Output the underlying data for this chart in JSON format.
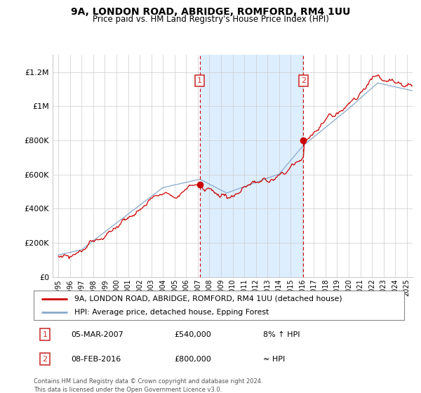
{
  "title": "9A, LONDON ROAD, ABRIDGE, ROMFORD, RM4 1UU",
  "subtitle": "Price paid vs. HM Land Registry's House Price Index (HPI)",
  "legend_red": "9A, LONDON ROAD, ABRIDGE, ROMFORD, RM4 1UU (detached house)",
  "legend_blue": "HPI: Average price, detached house, Epping Forest",
  "annotation1_date": "05-MAR-2007",
  "annotation1_price": "£540,000",
  "annotation1_hpi": "8% ↑ HPI",
  "annotation2_date": "08-FEB-2016",
  "annotation2_price": "£800,000",
  "annotation2_hpi": "≈ HPI",
  "footer": "Contains HM Land Registry data © Crown copyright and database right 2024.\nThis data is licensed under the Open Government Licence v3.0.",
  "red_color": "#cc0000",
  "blue_color": "#88aacc",
  "shade_color": "#ddeeff",
  "vline_color": "#cc0000",
  "grid_color": "#cccccc",
  "box_color": "#cc3333",
  "ylim_min": 0,
  "ylim_max": 1300000,
  "yticks": [
    0,
    200000,
    400000,
    600000,
    800000,
    1000000,
    1200000
  ],
  "ytick_labels": [
    "£0",
    "£200K",
    "£400K",
    "£600K",
    "£800K",
    "£1M",
    "£1.2M"
  ],
  "marker1_year": 2007.17,
  "marker2_year": 2016.1,
  "marker1_price": 540000,
  "marker2_price": 800000,
  "xmin": 1994.5,
  "xmax": 2025.5
}
